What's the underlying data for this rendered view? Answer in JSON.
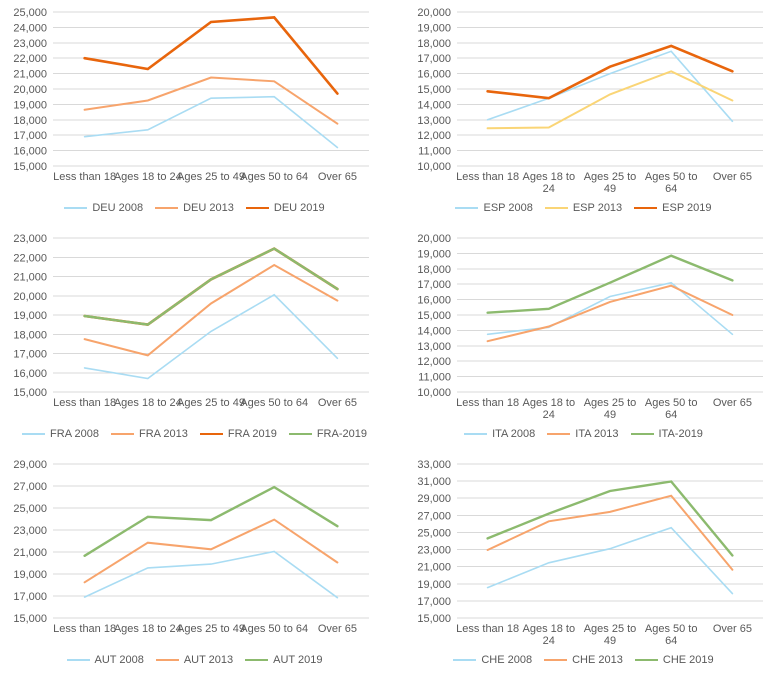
{
  "page": {
    "background": "#FFFFFF"
  },
  "colors": {
    "grid": "#D9D9D9",
    "axis_text": "#595959",
    "s2008_blue": "#A9DCF3",
    "s2013_orange": "#F7A46C",
    "s2013_yellow": "#FAD576",
    "s2019_orange": "#E8650C",
    "s2019_green": "#8CBA6E"
  },
  "chart_data": [
    {
      "id": "deu",
      "type": "line",
      "title": "",
      "xlabel": "",
      "ylabel": "",
      "categories": [
        "Less than 18",
        "Ages 18 to 24",
        "Ages 25 to 49",
        "Ages 50 to 64",
        "Over 65"
      ],
      "category_wrap": false,
      "ylim": [
        15000,
        25000
      ],
      "y_step": 1000,
      "grid": "horizontal",
      "legend_position": "bottom",
      "series": [
        {
          "name": "DEU 2008",
          "color": "s2008_blue",
          "width": 1.6,
          "values": [
            16900,
            17350,
            19400,
            19500,
            16200
          ]
        },
        {
          "name": "DEU 2013",
          "color": "s2013_orange",
          "width": 2.0,
          "values": [
            18650,
            19250,
            20750,
            20500,
            17750
          ]
        },
        {
          "name": "DEU 2019",
          "color": "s2019_orange",
          "width": 2.6,
          "values": [
            22000,
            21300,
            24350,
            24650,
            19700
          ]
        }
      ]
    },
    {
      "id": "esp",
      "type": "line",
      "title": "",
      "xlabel": "",
      "ylabel": "",
      "categories": [
        "Less than 18",
        "Ages 18 to 24",
        "Ages 25 to 49",
        "Ages 50 to 64",
        "Over 65"
      ],
      "category_wrap": true,
      "ylim": [
        10000,
        20000
      ],
      "y_step": 1000,
      "grid": "horizontal",
      "legend_position": "bottom",
      "series": [
        {
          "name": "ESP 2008",
          "color": "s2008_blue",
          "width": 1.6,
          "values": [
            13000,
            14400,
            16000,
            17450,
            12900
          ]
        },
        {
          "name": "ESP 2013",
          "color": "s2013_yellow",
          "width": 2.0,
          "values": [
            12450,
            12500,
            14650,
            16150,
            14250
          ]
        },
        {
          "name": "ESP 2019",
          "color": "s2019_orange",
          "width": 2.6,
          "values": [
            14850,
            14400,
            16450,
            17800,
            16150
          ]
        }
      ]
    },
    {
      "id": "fra",
      "type": "line",
      "title": "",
      "xlabel": "",
      "ylabel": "",
      "categories": [
        "Less than 18",
        "Ages 18 to 24",
        "Ages 25 to 49",
        "Ages 50 to 64",
        "Over 65"
      ],
      "category_wrap": false,
      "ylim": [
        15000,
        23000
      ],
      "y_step": 1000,
      "grid": "horizontal",
      "legend_position": "bottom",
      "series": [
        {
          "name": "FRA 2008",
          "color": "s2008_blue",
          "width": 1.6,
          "values": [
            16250,
            15700,
            18150,
            20050,
            16750
          ]
        },
        {
          "name": "FRA 2013",
          "color": "s2013_orange",
          "width": 2.0,
          "values": [
            17750,
            16900,
            19600,
            21600,
            19750
          ]
        },
        {
          "name": "FRA 2019",
          "color": "s2019_orange",
          "width": 2.6,
          "values": [
            18950,
            18500,
            20850,
            22450,
            20350
          ]
        },
        {
          "name": "FRA-2019",
          "color": "s2019_green",
          "width": 2.4,
          "values": [
            18950,
            18500,
            20850,
            22450,
            20350
          ]
        }
      ]
    },
    {
      "id": "ita",
      "type": "line",
      "title": "",
      "xlabel": "",
      "ylabel": "",
      "categories": [
        "Less than 18",
        "Ages 18 to 24",
        "Ages 25 to 49",
        "Ages 50 to 64",
        "Over 65"
      ],
      "category_wrap": true,
      "ylim": [
        10000,
        20000
      ],
      "y_step": 1000,
      "grid": "horizontal",
      "legend_position": "bottom",
      "series": [
        {
          "name": "ITA 2008",
          "color": "s2008_blue",
          "width": 1.6,
          "values": [
            13750,
            14200,
            16200,
            17100,
            13750
          ]
        },
        {
          "name": "ITA 2013",
          "color": "s2013_orange",
          "width": 2.0,
          "values": [
            13300,
            14250,
            15850,
            16900,
            15000
          ]
        },
        {
          "name": "ITA-2019",
          "color": "s2019_green",
          "width": 2.4,
          "values": [
            15150,
            15400,
            17100,
            18850,
            17250
          ]
        }
      ]
    },
    {
      "id": "aut",
      "type": "line",
      "title": "",
      "xlabel": "",
      "ylabel": "",
      "categories": [
        "Less than 18",
        "Ages 18 to 24",
        "Ages 25 to 49",
        "Ages 50 to 64",
        "Over 65"
      ],
      "category_wrap": false,
      "ylim": [
        15000,
        29000
      ],
      "y_step": 2000,
      "grid": "horizontal",
      "legend_position": "bottom",
      "series": [
        {
          "name": "AUT 2008",
          "color": "s2008_blue",
          "width": 1.6,
          "values": [
            16900,
            19550,
            19900,
            21050,
            16850
          ]
        },
        {
          "name": "AUT 2013",
          "color": "s2013_orange",
          "width": 2.0,
          "values": [
            18250,
            21850,
            21250,
            23950,
            20050
          ]
        },
        {
          "name": "AUT 2019",
          "color": "s2019_green",
          "width": 2.4,
          "values": [
            20650,
            24200,
            23900,
            26900,
            23350
          ]
        }
      ]
    },
    {
      "id": "che",
      "type": "line",
      "title": "",
      "xlabel": "",
      "ylabel": "",
      "categories": [
        "Less than 18",
        "Ages 18 to 24",
        "Ages 25 to 49",
        "Ages 50 to 64",
        "Over 65"
      ],
      "category_wrap": true,
      "ylim": [
        15000,
        33000
      ],
      "y_step": 2000,
      "grid": "horizontal",
      "legend_position": "bottom",
      "series": [
        {
          "name": "CHE 2008",
          "color": "s2008_blue",
          "width": 1.6,
          "values": [
            18550,
            21450,
            23100,
            25550,
            17850
          ]
        },
        {
          "name": "CHE 2013",
          "color": "s2013_orange",
          "width": 2.0,
          "values": [
            22950,
            26300,
            27400,
            29300,
            20650
          ]
        },
        {
          "name": "CHE 2019",
          "color": "s2019_green",
          "width": 2.4,
          "values": [
            24300,
            27200,
            29850,
            30950,
            22300
          ]
        }
      ]
    }
  ]
}
